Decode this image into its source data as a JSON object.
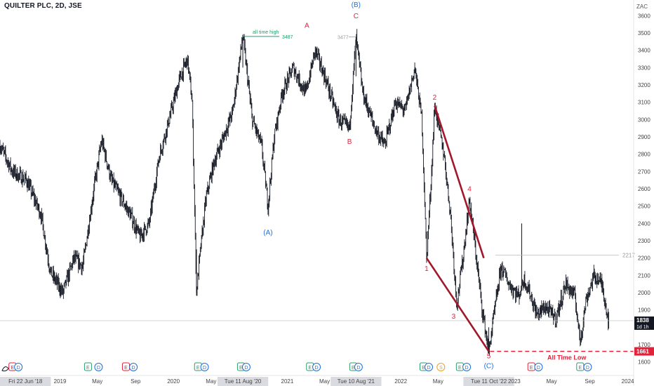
{
  "header": {
    "title": "QUILTER PLC, 2D, JSE",
    "currency": "ZAC"
  },
  "chart_data": {
    "type": "line",
    "style": "ohlc-bars",
    "ylim": [
      1550,
      3650
    ],
    "yticks": [
      1600,
      1700,
      1800,
      1900,
      2000,
      2100,
      2200,
      2300,
      2400,
      2500,
      2600,
      2700,
      2800,
      2900,
      3000,
      3100,
      3200,
      3300,
      3400,
      3500,
      3600
    ],
    "xlim": [
      "2018-06-22",
      "2024-01-20"
    ],
    "xticks": [
      {
        "label": "Fri 22 Jun '18",
        "date": "2018-06-22",
        "boxed": true
      },
      {
        "label": "2019",
        "date": "2019-01-01"
      },
      {
        "label": "May",
        "date": "2019-05-01"
      },
      {
        "label": "Sep",
        "date": "2019-09-01"
      },
      {
        "label": "2020",
        "date": "2020-01-01"
      },
      {
        "label": "May",
        "date": "2020-05-01"
      },
      {
        "label": "Tue 11 Aug '20",
        "date": "2020-08-11",
        "boxed": true
      },
      {
        "label": "2021",
        "date": "2021-01-01"
      },
      {
        "label": "May",
        "date": "2021-05-01"
      },
      {
        "label": "Tue 10 Aug '21",
        "date": "2021-08-10",
        "boxed": true
      },
      {
        "label": "2022",
        "date": "2022-01-01"
      },
      {
        "label": "May",
        "date": "2022-05-01"
      },
      {
        "label": "Tue 11 Oct '22",
        "date": "2022-10-11",
        "boxed": true
      },
      {
        "label": "2023",
        "date": "2023-01-01"
      },
      {
        "label": "May",
        "date": "2023-05-01"
      },
      {
        "label": "Sep",
        "date": "2023-09-01"
      },
      {
        "label": "2024",
        "date": "2024-01-01"
      }
    ],
    "price_path": [
      [
        "2018-06-22",
        2850
      ],
      [
        "2018-08-01",
        2700
      ],
      [
        "2018-09-15",
        2650
      ],
      [
        "2018-11-01",
        2450
      ],
      [
        "2018-12-01",
        2120
      ],
      [
        "2019-01-10",
        2000
      ],
      [
        "2019-02-15",
        2200
      ],
      [
        "2019-03-15",
        2150
      ],
      [
        "2019-04-20",
        2600
      ],
      [
        "2019-05-15",
        2880
      ],
      [
        "2019-06-15",
        2650
      ],
      [
        "2019-07-15",
        2550
      ],
      [
        "2019-08-15",
        2450
      ],
      [
        "2019-09-15",
        2320
      ],
      [
        "2019-10-15",
        2400
      ],
      [
        "2019-11-15",
        2780
      ],
      [
        "2019-12-15",
        2980
      ],
      [
        "2020-01-20",
        3230
      ],
      [
        "2020-02-15",
        3350
      ],
      [
        "2020-03-01",
        3100
      ],
      [
        "2020-03-15",
        2000
      ],
      [
        "2020-03-25",
        2200
      ],
      [
        "2020-04-15",
        2550
      ],
      [
        "2020-05-10",
        2750
      ],
      [
        "2020-06-10",
        2900
      ],
      [
        "2020-07-10",
        3050
      ],
      [
        "2020-08-11",
        3487
      ],
      [
        "2020-09-10",
        3000
      ],
      [
        "2020-10-10",
        2850
      ],
      [
        "2020-10-31",
        2500
      ],
      [
        "2020-11-20",
        2900
      ],
      [
        "2020-12-15",
        3150
      ],
      [
        "2021-01-20",
        3300
      ],
      [
        "2021-03-01",
        3150
      ],
      [
        "2021-04-01",
        3400
      ],
      [
        "2021-05-01",
        3250
      ],
      [
        "2021-06-15",
        3000
      ],
      [
        "2021-07-20",
        2950
      ],
      [
        "2021-08-10",
        3477
      ],
      [
        "2021-09-01",
        3150
      ],
      [
        "2021-10-10",
        2950
      ],
      [
        "2021-11-10",
        2850
      ],
      [
        "2021-12-15",
        3100
      ],
      [
        "2022-01-15",
        3050
      ],
      [
        "2022-02-15",
        3300
      ],
      [
        "2022-03-10",
        3000
      ],
      [
        "2022-03-25",
        2200
      ],
      [
        "2022-04-10",
        2700
      ],
      [
        "2022-04-20",
        3080
      ],
      [
        "2022-05-20",
        2800
      ],
      [
        "2022-06-10",
        2450
      ],
      [
        "2022-06-30",
        1930
      ],
      [
        "2022-07-20",
        2200
      ],
      [
        "2022-08-10",
        2540
      ],
      [
        "2022-09-01",
        2200
      ],
      [
        "2022-09-20",
        1900
      ],
      [
        "2022-10-11",
        1661
      ],
      [
        "2022-10-30",
        1900
      ],
      [
        "2022-11-20",
        2150
      ],
      [
        "2022-12-15",
        2050
      ],
      [
        "2023-01-15",
        1980
      ],
      [
        "2023-02-01",
        2080
      ],
      [
        "2023-02-20",
        2000
      ],
      [
        "2023-03-15",
        1870
      ],
      [
        "2023-04-10",
        1920
      ],
      [
        "2023-05-15",
        1850
      ],
      [
        "2023-06-15",
        2050
      ],
      [
        "2023-07-15",
        1980
      ],
      [
        "2023-08-01",
        1720
      ],
      [
        "2023-08-20",
        1960
      ],
      [
        "2023-09-15",
        2100
      ],
      [
        "2023-10-10",
        2050
      ],
      [
        "2023-11-01",
        1830
      ]
    ],
    "last_price": {
      "value": 1838,
      "label": "1838",
      "countdown": "1d 1h"
    },
    "levels": [
      {
        "value": 2217,
        "label": "2217",
        "style": "grey"
      },
      {
        "value": 1661,
        "label": "1661",
        "style": "red-dashed"
      }
    ],
    "annotations": {
      "ath_text": "all time high",
      "ath_value": "3487",
      "peak_b_value": "3477",
      "atl_text": "All Time Low"
    },
    "wave_labels": [
      {
        "text": "A",
        "date": "2021-03-05",
        "y": 3530,
        "color": "#e0223b"
      },
      {
        "text": "B",
        "date": "2021-07-20",
        "y": 2860,
        "color": "#e0223b"
      },
      {
        "text": "C",
        "date": "2021-08-10",
        "y": 3585,
        "color": "#e0223b"
      },
      {
        "text": "(B)",
        "date": "2021-08-10",
        "y": 3650,
        "color": "#1e6fd9"
      },
      {
        "text": "(A)",
        "date": "2020-10-31",
        "y": 2335,
        "color": "#1e6fd9"
      },
      {
        "text": "(C)",
        "date": "2022-10-11",
        "y": 1565,
        "color": "#1e6fd9"
      },
      {
        "text": "1",
        "date": "2022-03-25",
        "y": 2125,
        "color": "#e0223b"
      },
      {
        "text": "2",
        "date": "2022-04-20",
        "y": 3115,
        "color": "#e0223b"
      },
      {
        "text": "3",
        "date": "2022-06-20",
        "y": 1850,
        "color": "#e0223b"
      },
      {
        "text": "4",
        "date": "2022-08-10",
        "y": 2585,
        "color": "#e0223b"
      },
      {
        "text": "5",
        "date": "2022-10-11",
        "y": 1620,
        "color": "#e0223b"
      }
    ],
    "wave_lines": [
      {
        "from": [
          "2022-03-25",
          2200
        ],
        "to": [
          "2022-10-11",
          1661
        ]
      },
      {
        "from": [
          "2022-04-20",
          3080
        ],
        "to": [
          "2022-09-25",
          2200
        ]
      }
    ],
    "events": [
      {
        "date": "2018-08-01",
        "kind": "E",
        "color": "#e0223b"
      },
      {
        "date": "2018-08-20",
        "kind": "D",
        "color": "#1e6fd9"
      },
      {
        "date": "2019-04-01",
        "kind": "E",
        "color": "#22a06b"
      },
      {
        "date": "2019-05-05",
        "kind": "D",
        "color": "#1e6fd9"
      },
      {
        "date": "2019-08-01",
        "kind": "E",
        "color": "#e0223b"
      },
      {
        "date": "2019-08-25",
        "kind": "D",
        "color": "#1e6fd9"
      },
      {
        "date": "2020-03-20",
        "kind": "E",
        "color": "#22a06b"
      },
      {
        "date": "2020-04-10",
        "kind": "D",
        "color": "#1e6fd9"
      },
      {
        "date": "2020-08-05",
        "kind": "E",
        "color": "#22a06b"
      },
      {
        "date": "2020-08-22",
        "kind": "D",
        "color": "#1e6fd9"
      },
      {
        "date": "2021-03-15",
        "kind": "E",
        "color": "#22a06b"
      },
      {
        "date": "2021-04-05",
        "kind": "D",
        "color": "#1e6fd9"
      },
      {
        "date": "2021-08-01",
        "kind": "E",
        "color": "#22a06b"
      },
      {
        "date": "2021-08-18",
        "kind": "D",
        "color": "#1e6fd9"
      },
      {
        "date": "2022-03-15",
        "kind": "E",
        "color": "#22a06b"
      },
      {
        "date": "2022-04-01",
        "kind": "D",
        "color": "#1e6fd9"
      },
      {
        "date": "2022-05-10",
        "kind": "S",
        "color": "#f0a020"
      },
      {
        "date": "2022-07-10",
        "kind": "E",
        "color": "#22a06b"
      },
      {
        "date": "2022-08-01",
        "kind": "D",
        "color": "#1e6fd9"
      },
      {
        "date": "2023-02-25",
        "kind": "E",
        "color": "#e0223b"
      },
      {
        "date": "2023-03-20",
        "kind": "D",
        "color": "#1e6fd9"
      },
      {
        "date": "2023-08-01",
        "kind": "E",
        "color": "#22a06b"
      },
      {
        "date": "2023-08-25",
        "kind": "D",
        "color": "#1e6fd9"
      }
    ],
    "colors": {
      "bars": "#131722",
      "wave_line": "#a3172b",
      "red": "#e0223b",
      "blue": "#1e6fd9",
      "green": "#22a06b",
      "grey": "#999999"
    }
  }
}
